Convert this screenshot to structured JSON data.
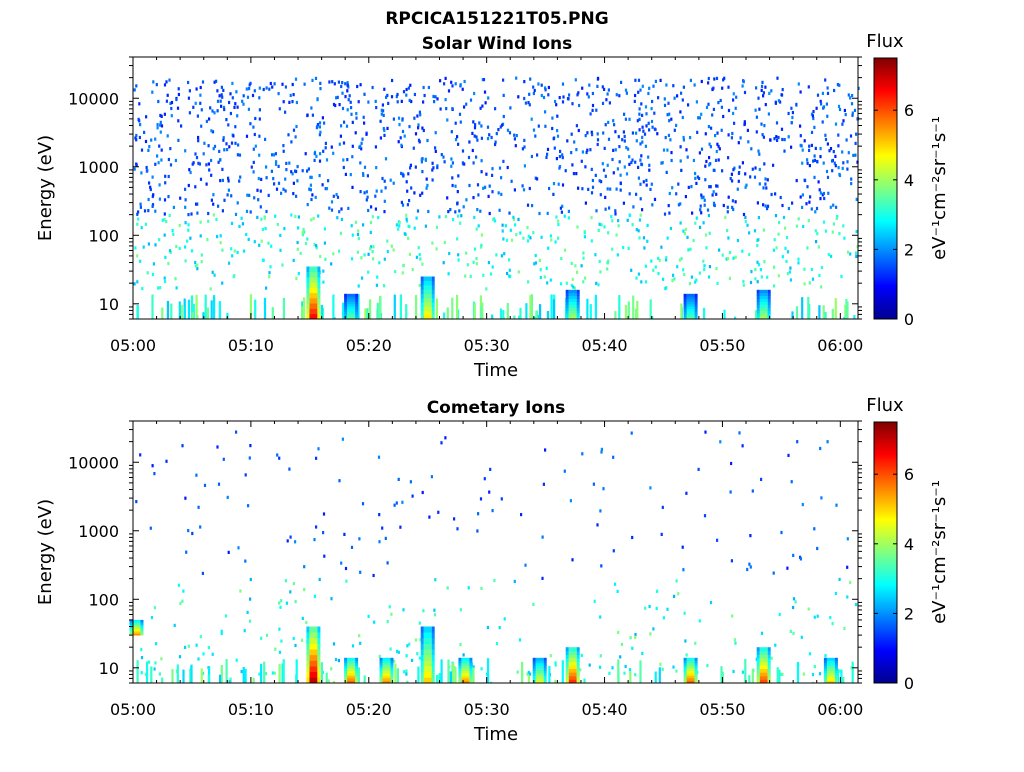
{
  "figure_title": "RPCICA151221T05.PNG",
  "chart_data": [
    {
      "type": "heatmap",
      "title": "Solar Wind Ions",
      "xlabel": "Time",
      "ylabel": "Energy (eV)",
      "x_ticks": [
        "05:00",
        "05:10",
        "05:20",
        "05:30",
        "05:40",
        "05:50",
        "06:00"
      ],
      "y_ticks": [
        "10",
        "100",
        "1000",
        "10000"
      ],
      "xlim_minutes_after_0500": [
        0,
        61.5
      ],
      "ylim_eV": [
        6,
        40000
      ],
      "y_scale": "log",
      "colorbar": {
        "title": "Flux",
        "label": "eV⁻¹cm⁻²sr⁻¹s⁻¹",
        "ticks": [
          "0",
          "2",
          "4",
          "6"
        ],
        "range": [
          0,
          7.5
        ],
        "colormap": "jet"
      },
      "background": "#ffffff",
      "description_of_content": "sparse scattered blue counts (flux ~1-2) across 100-20000 eV, cyan/green counts (flux ~2-4) near 10-60 eV; strongest low-energy bursts at 05:15, 05:25 and 05:37",
      "bursts": [
        {
          "time_min": 15.3,
          "energy_low_eV": 6,
          "energy_high_eV": 35,
          "flux": 6.5
        },
        {
          "time_min": 25.0,
          "energy_low_eV": 6,
          "energy_high_eV": 25,
          "flux": 4.8
        },
        {
          "time_min": 37.3,
          "energy_low_eV": 6,
          "energy_high_eV": 16,
          "flux": 4.0
        },
        {
          "time_min": 53.5,
          "energy_low_eV": 6,
          "energy_high_eV": 16,
          "flux": 4.0
        },
        {
          "time_min": 18.5,
          "energy_low_eV": 6,
          "energy_high_eV": 14,
          "flux": 3.5
        },
        {
          "time_min": 47.3,
          "energy_low_eV": 6,
          "energy_high_eV": 14,
          "flux": 3.4
        }
      ]
    },
    {
      "type": "heatmap",
      "title": "Cometary Ions",
      "xlabel": "Time",
      "ylabel": "Energy (eV)",
      "x_ticks": [
        "05:00",
        "05:10",
        "05:20",
        "05:30",
        "05:40",
        "05:50",
        "06:00"
      ],
      "y_ticks": [
        "10",
        "100",
        "1000",
        "10000"
      ],
      "xlim_minutes_after_0500": [
        0,
        61.5
      ],
      "ylim_eV": [
        6,
        40000
      ],
      "y_scale": "log",
      "colorbar": {
        "title": "Flux",
        "label": "eV⁻¹cm⁻²sr⁻¹s⁻¹",
        "ticks": [
          "0",
          "2",
          "4",
          "6"
        ],
        "range": [
          0,
          7.5
        ],
        "colormap": "jet"
      },
      "background": "#ffffff",
      "description_of_content": "intense low-energy (6-50 eV) bursts with flux up to ~7 at roughly 05:15, 05:18, 05:21, 05:25, 05:28, 05:34, 05:37, 05:47, 05:53 and 05:59, with sparse counts up to ~10000 eV",
      "bursts": [
        {
          "time_min": 15.3,
          "energy_low_eV": 6,
          "energy_high_eV": 40,
          "flux": 7.0
        },
        {
          "time_min": 37.3,
          "energy_low_eV": 6,
          "energy_high_eV": 20,
          "flux": 6.2
        },
        {
          "time_min": 53.5,
          "energy_low_eV": 6,
          "energy_high_eV": 20,
          "flux": 6.0
        },
        {
          "time_min": 18.5,
          "energy_low_eV": 6,
          "energy_high_eV": 14,
          "flux": 5.8
        },
        {
          "time_min": 21.5,
          "energy_low_eV": 6,
          "energy_high_eV": 14,
          "flux": 5.5
        },
        {
          "time_min": 47.3,
          "energy_low_eV": 6,
          "energy_high_eV": 14,
          "flux": 5.8
        },
        {
          "time_min": 25.0,
          "energy_low_eV": 6,
          "energy_high_eV": 40,
          "flux": 5.0
        },
        {
          "time_min": 28.2,
          "energy_low_eV": 6,
          "energy_high_eV": 14,
          "flux": 5.5
        },
        {
          "time_min": 59.2,
          "energy_low_eV": 6,
          "energy_high_eV": 14,
          "flux": 5.0
        },
        {
          "time_min": 34.5,
          "energy_low_eV": 6,
          "energy_high_eV": 14,
          "flux": 4.5
        },
        {
          "time_min": 0.3,
          "energy_low_eV": 30,
          "energy_high_eV": 50,
          "flux": 5.5
        }
      ]
    }
  ]
}
